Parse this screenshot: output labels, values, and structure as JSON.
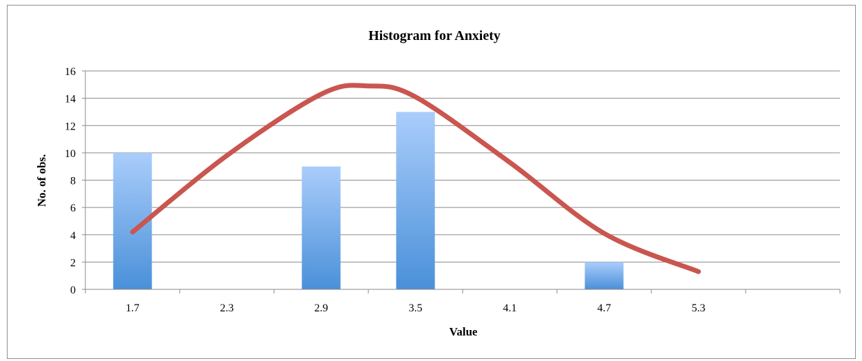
{
  "chart_data": {
    "type": "bar",
    "title": "Histogram for Anxiety",
    "xlabel": "Value",
    "ylabel": "No. of obs.",
    "categories": [
      "1.7",
      "2.3",
      "2.9",
      "3.5",
      "4.1",
      "4.7",
      "5.3",
      ""
    ],
    "values": [
      10,
      0,
      9,
      13,
      0,
      2,
      0,
      0
    ],
    "ylim": [
      0,
      16
    ],
    "yticks": [
      0,
      2,
      4,
      6,
      8,
      10,
      12,
      14,
      16
    ],
    "grid": true,
    "legend": "none",
    "bar_color": "#7fb1e6",
    "curve_color": "#c9564f",
    "curve": {
      "type": "line",
      "x": [
        1.7,
        2.3,
        2.9,
        3.2,
        3.5,
        4.1,
        4.7,
        5.3
      ],
      "values": [
        4.2,
        9.8,
        14.3,
        14.9,
        14.1,
        9.3,
        4.1,
        1.3
      ]
    }
  }
}
